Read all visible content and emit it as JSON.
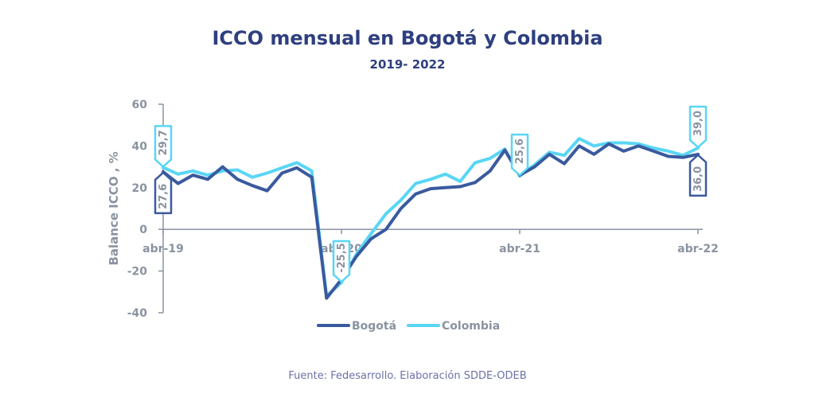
{
  "title": "ICCO mensual en Bogotá y Colombia",
  "subtitle": "2019- 2022",
  "source": "Fuente: Fedesarrollo. Elaboración SDDE-ODEB",
  "colors": {
    "title": "#2e3f7f",
    "bogota": "#3a5a9e",
    "colombia": "#5ad6f5",
    "axis": "#8a93a0"
  },
  "chart_data": {
    "type": "line",
    "ylabel": "Balance ICCO , %",
    "ylim": [
      -40,
      60
    ],
    "yticks": [
      "60",
      "40",
      "20",
      "0",
      "-20",
      "-40"
    ],
    "ytick_values": [
      60,
      40,
      20,
      0,
      -20,
      -40
    ],
    "xtick_labels": [
      "abr-19",
      "abr-20",
      "abr-21",
      "abr-22"
    ],
    "xtick_index": [
      0,
      12,
      24,
      36
    ],
    "x": [
      "abr-19",
      "may-19",
      "jun-19",
      "jul-19",
      "ago-19",
      "sep-19",
      "oct-19",
      "nov-19",
      "dic-19",
      "ene-20",
      "feb-20",
      "mar-20",
      "abr-20",
      "may-20",
      "jun-20",
      "jul-20",
      "ago-20",
      "sep-20",
      "oct-20",
      "nov-20",
      "dic-20",
      "ene-21",
      "feb-21",
      "mar-21",
      "abr-21",
      "may-21",
      "jun-21",
      "jul-21",
      "ago-21",
      "sep-21",
      "oct-21",
      "nov-21",
      "dic-21",
      "ene-22",
      "feb-22",
      "mar-22",
      "abr-22"
    ],
    "series": [
      {
        "name": "Bogotá",
        "color": "#3a5a9e",
        "values": [
          27.6,
          22,
          26,
          24,
          30,
          24,
          21,
          18.5,
          27,
          29.5,
          25,
          -33,
          -24,
          -13,
          -4.5,
          0,
          10,
          17,
          19.5,
          20,
          20.5,
          22.5,
          28,
          38,
          26,
          30,
          36,
          31.5,
          40,
          36,
          41,
          37.5,
          40,
          37.5,
          35,
          34.5,
          36.0
        ]
      },
      {
        "name": "Colombia",
        "color": "#5ad6f5",
        "values": [
          29.7,
          26.5,
          28,
          26,
          28,
          28.5,
          25,
          27,
          29.5,
          32,
          28,
          -32,
          -25.5,
          -12,
          -2,
          7.5,
          14,
          22,
          24,
          26.5,
          23,
          32,
          34,
          38.5,
          25.6,
          31,
          37,
          35.5,
          43.5,
          40,
          41.5,
          41.5,
          41,
          39,
          37.5,
          35.5,
          39.0
        ]
      }
    ],
    "callouts": [
      {
        "text": "29,7",
        "series": "Colombia",
        "index": 0,
        "dir": "up"
      },
      {
        "text": "27,6",
        "series": "Bogotá",
        "index": 0,
        "dir": "down"
      },
      {
        "text": "-25,5",
        "series": "Colombia",
        "index": 12,
        "dir": "up"
      },
      {
        "text": "25,6",
        "series": "Colombia",
        "index": 24,
        "dir": "up"
      },
      {
        "text": "39,0",
        "series": "Colombia",
        "index": 36,
        "dir": "up"
      },
      {
        "text": "36,0",
        "series": "Bogotá",
        "index": 36,
        "dir": "down"
      }
    ],
    "legend": [
      "Bogotá",
      "Colombia"
    ],
    "legend_position": "bottom-center",
    "grid": false
  }
}
